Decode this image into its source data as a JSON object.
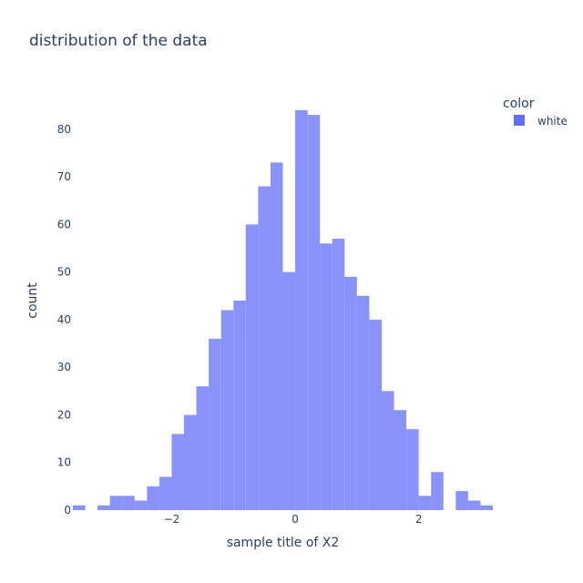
{
  "chart_data": {
    "type": "histogram",
    "title": "distribution of the data",
    "xlabel": "sample title of X2",
    "ylabel": "count",
    "xlim": [
      -3.6,
      3.2
    ],
    "ylim": [
      0,
      88
    ],
    "x_ticks": [
      -2,
      0,
      2
    ],
    "x_tick_labels": [
      "−2",
      "0",
      "2"
    ],
    "y_ticks": [
      0,
      10,
      20,
      30,
      40,
      50,
      60,
      70,
      80
    ],
    "grid": false,
    "legend": {
      "title": "color",
      "position": "top-right"
    },
    "bin_width": 0.2,
    "series": [
      {
        "name": "white",
        "color": "#636efa",
        "opacity": 0.75,
        "bin_starts": [
          -3.6,
          -3.2,
          -3.0,
          -2.8,
          -2.6,
          -2.4,
          -2.2,
          -2.0,
          -1.8,
          -1.6,
          -1.4,
          -1.2,
          -1.0,
          -0.8,
          -0.6,
          -0.4,
          -0.2,
          0.0,
          0.2,
          0.4,
          0.6,
          0.8,
          1.0,
          1.2,
          1.4,
          1.6,
          1.8,
          2.0,
          2.2,
          2.6,
          2.8,
          3.0
        ],
        "counts": [
          1,
          1,
          3,
          3,
          2,
          5,
          7,
          16,
          20,
          26,
          36,
          42,
          44,
          60,
          68,
          73,
          50,
          84,
          83,
          56,
          57,
          49,
          45,
          40,
          25,
          21,
          17,
          3,
          8,
          4,
          2,
          1
        ]
      }
    ]
  }
}
